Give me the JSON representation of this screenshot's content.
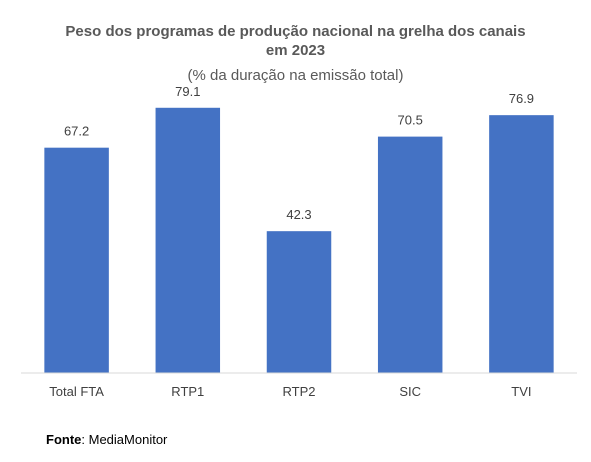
{
  "chart_data": {
    "type": "bar",
    "title_lines": [
      "Peso dos programas de produção nacional na grelha dos canais",
      "em 2023"
    ],
    "subtitle": "(% da duração na emissão total)",
    "categories": [
      "Total FTA",
      "RTP1",
      "RTP2",
      "SIC",
      "TVI"
    ],
    "values": [
      67.2,
      79.1,
      42.3,
      70.5,
      76.9
    ],
    "data_labels": [
      "67.2",
      "79.1",
      "42.3",
      "70.5",
      "76.9"
    ],
    "ylim": [
      0,
      85
    ],
    "bar_color": "#4472C4",
    "axis_color": "#D9D9D9",
    "grid": false,
    "legend": "none"
  },
  "source": {
    "label": "Fonte",
    "separator": ": ",
    "text": "MediaMonitor"
  }
}
